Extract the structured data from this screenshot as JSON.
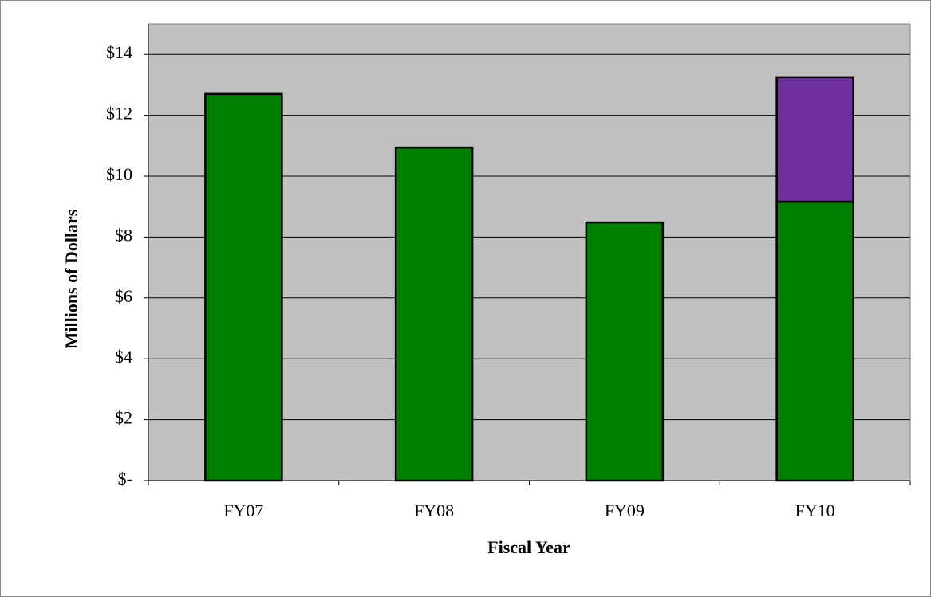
{
  "chart_data": {
    "type": "stacked-bar",
    "x_label": "Fiscal Year",
    "y_label": "Millions of Dollars",
    "categories": [
      "FY07",
      "FY08",
      "FY09",
      "FY10"
    ],
    "series": [
      {
        "color": "#008000",
        "values": [
          12.7,
          10.94,
          8.48,
          9.16
        ]
      },
      {
        "color": "#7030a0",
        "values": [
          null,
          null,
          null,
          4.09
        ]
      }
    ],
    "ylim": [
      0,
      15
    ],
    "yticks": [
      {
        "value": 0,
        "label": "$-"
      },
      {
        "value": 2,
        "label": "$2"
      },
      {
        "value": 4,
        "label": "$4"
      },
      {
        "value": 6,
        "label": "$6"
      },
      {
        "value": 8,
        "label": "$8"
      },
      {
        "value": 10,
        "label": "$10"
      },
      {
        "value": 12,
        "label": "$12"
      },
      {
        "value": 14,
        "label": "$14"
      }
    ],
    "grid": true,
    "plot_background": "#c0c0c0"
  }
}
